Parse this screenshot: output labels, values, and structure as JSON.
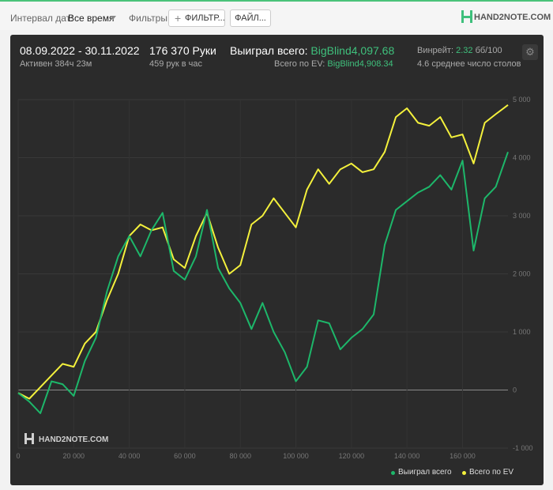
{
  "toolbar": {
    "date_label": "Интервал дат:",
    "date_value": "Все время",
    "filters_label": "Фильтры:",
    "filter_button": "ФИЛЬТР...",
    "files_button": "ФАЙЛ...",
    "brand": "HAND2NOTE.COM"
  },
  "header": {
    "date_range": "08.09.2022 - 30.11.2022",
    "active": "Активен 384ч 23м",
    "hands": "176 370 Руки",
    "hands_per_hour": "459 рук в час",
    "won_label": "Выиграл всего:",
    "won_value": "BigBlind4,097.68",
    "ev_label": "Всего по EV:",
    "ev_value": "BigBlind4,908.34",
    "winrate_label": "Винрейт:",
    "winrate_value": "2.32",
    "winrate_unit": "бб/100",
    "tables": "4.6 среднее число столов"
  },
  "watermark": "HAND2NOTE.COM",
  "colors": {
    "won": "#1db76a",
    "ev": "#f4f13c",
    "accent": "#3fc07c",
    "background": "#2b2b2b"
  },
  "chart_data": {
    "type": "line",
    "x_ticks": [
      "0",
      "20 000",
      "40 000",
      "60 000",
      "80 000",
      "100 000",
      "120 000",
      "140 000",
      "160 000"
    ],
    "y_ticks": [
      "-1 000",
      "0",
      "1 000",
      "2 000",
      "3 000",
      "4 000",
      "5 000"
    ],
    "xlim": [
      0,
      176370
    ],
    "ylim": [
      -1000,
      5000
    ],
    "grid": true,
    "legend_position": "bottom-right",
    "x": [
      0,
      4000,
      8000,
      12000,
      16000,
      20000,
      24000,
      28000,
      32000,
      36000,
      40000,
      44000,
      48000,
      52000,
      56000,
      60000,
      64000,
      68000,
      72000,
      76000,
      80000,
      84000,
      88000,
      92000,
      96000,
      100000,
      104000,
      108000,
      112000,
      116000,
      120000,
      124000,
      128000,
      132000,
      136000,
      140000,
      144000,
      148000,
      152000,
      156000,
      160000,
      164000,
      168000,
      172000,
      176370
    ],
    "series": [
      {
        "name": "Выиграл всего",
        "values": [
          -50,
          -200,
          -400,
          150,
          100,
          -100,
          500,
          900,
          1700,
          2300,
          2650,
          2300,
          2750,
          3050,
          2050,
          1900,
          2300,
          3100,
          2100,
          1750,
          1500,
          1050,
          1500,
          1000,
          650,
          150,
          400,
          1200,
          1150,
          700,
          900,
          1050,
          1300,
          2500,
          3100,
          3250,
          3400,
          3500,
          3700,
          3450,
          3950,
          2400,
          3300,
          3500,
          4098
        ]
      },
      {
        "name": "Всего по EV",
        "values": [
          -50,
          -150,
          50,
          250,
          450,
          400,
          800,
          1000,
          1550,
          2000,
          2650,
          2850,
          2750,
          2800,
          2250,
          2100,
          2650,
          3050,
          2450,
          2000,
          2150,
          2850,
          3000,
          3300,
          3050,
          2800,
          3450,
          3800,
          3550,
          3800,
          3900,
          3750,
          3800,
          4100,
          4700,
          4850,
          4600,
          4550,
          4700,
          4350,
          4400,
          3900,
          4600,
          4750,
          4908
        ]
      }
    ]
  }
}
